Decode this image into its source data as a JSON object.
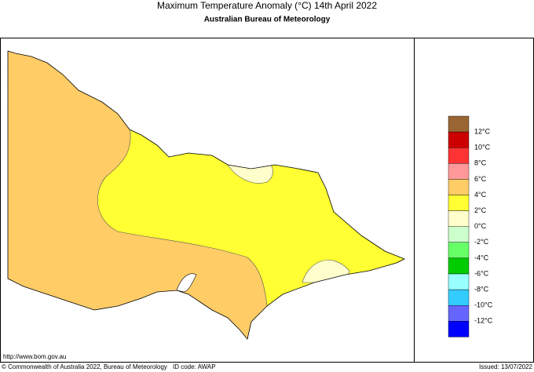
{
  "header": {
    "title": "Maximum Temperature Anomaly (°C)  14th April 2022",
    "subtitle": "Australian Bureau of Meteorology"
  },
  "legend": {
    "colors": [
      "#996633",
      "#cc0000",
      "#ff3333",
      "#ff9999",
      "#ffcc66",
      "#ffff33",
      "#ffffcc",
      "#ccffcc",
      "#66ff66",
      "#00cc00",
      "#99ffff",
      "#33ccff",
      "#6666ff",
      "#0000ff"
    ],
    "labels": [
      "12°C",
      "10°C",
      "8°C",
      "6°C",
      "4°C",
      "2°C",
      "0°C",
      "-2°C",
      "-4°C",
      "-6°C",
      "-8°C",
      "-10°C",
      "-12°C"
    ]
  },
  "footer": {
    "url": "http://www.bom.gov.au",
    "copyright": "© Commonwealth of Australia 2022, Bureau of Meteorology",
    "id_code": "ID code: AWAP",
    "issued": "Issued: 13/07/2022"
  }
}
